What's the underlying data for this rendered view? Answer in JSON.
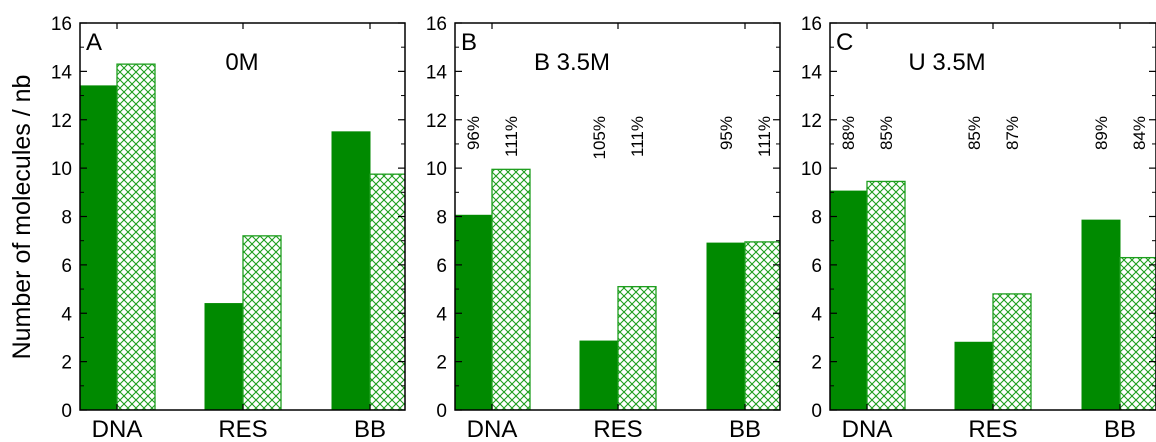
{
  "chart_data": [
    {
      "type": "bar",
      "panel_letter": "A",
      "title": "0M",
      "categories": [
        "DNA",
        "RES",
        "BB"
      ],
      "series": [
        {
          "style": "solid",
          "values": [
            13.4,
            4.4,
            11.5
          ]
        },
        {
          "style": "hatched",
          "values": [
            14.3,
            7.2,
            9.75
          ]
        }
      ],
      "percent_labels": [],
      "ylabel": "Number of molecules / nb",
      "ylim": [
        0,
        16
      ],
      "yticks": [
        0,
        2,
        4,
        6,
        8,
        10,
        12,
        14,
        16
      ]
    },
    {
      "type": "bar",
      "panel_letter": "B",
      "title": "B 3.5M",
      "categories": [
        "DNA",
        "RES",
        "BB"
      ],
      "series": [
        {
          "style": "solid",
          "values": [
            8.05,
            2.85,
            6.9
          ]
        },
        {
          "style": "hatched",
          "values": [
            9.95,
            5.1,
            6.95
          ]
        }
      ],
      "percent_labels": [
        [
          "96%",
          "111%"
        ],
        [
          "105%",
          "111%"
        ],
        [
          "95%",
          "111%"
        ]
      ],
      "ylim": [
        0,
        16
      ],
      "yticks": [
        0,
        2,
        4,
        6,
        8,
        10,
        12,
        14,
        16
      ]
    },
    {
      "type": "bar",
      "panel_letter": "C",
      "title": "U 3.5M",
      "categories": [
        "DNA",
        "RES",
        "BB"
      ],
      "series": [
        {
          "style": "solid",
          "values": [
            9.05,
            2.8,
            7.85
          ]
        },
        {
          "style": "hatched",
          "values": [
            9.45,
            4.8,
            6.3
          ]
        }
      ],
      "percent_labels": [
        [
          "88%",
          "85%"
        ],
        [
          "85%",
          "87%"
        ],
        [
          "89%",
          "84%"
        ]
      ],
      "ylim": [
        0,
        16
      ],
      "yticks": [
        0,
        2,
        4,
        6,
        8,
        10,
        12,
        14,
        16
      ]
    }
  ],
  "colors": {
    "solid": "#008a00",
    "hatch": "#1e9e1e",
    "axis": "#000000"
  }
}
